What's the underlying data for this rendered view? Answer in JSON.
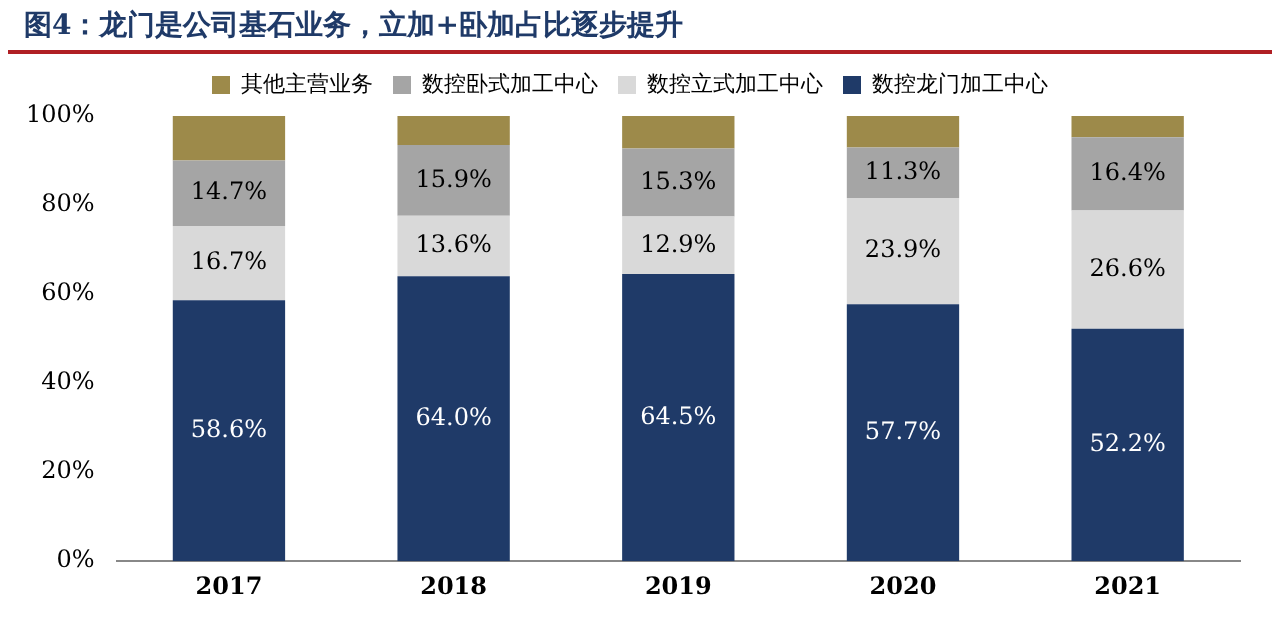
{
  "chart_data": {
    "type": "bar",
    "stacked": true,
    "title": "图4：龙门是公司基石业务，立加+卧加占比逐步提升",
    "categories": [
      "2017",
      "2018",
      "2019",
      "2020",
      "2021"
    ],
    "series": [
      {
        "name": "数控龙门加工中心",
        "color": "#1f3a68",
        "values": [
          58.6,
          64.0,
          64.5,
          57.7,
          52.2
        ],
        "value_labels": [
          "58.6%",
          "64.0%",
          "64.5%",
          "57.7%",
          "52.2%"
        ]
      },
      {
        "name": "数控立式加工中心",
        "color": "#d9d9d9",
        "values": [
          16.7,
          13.6,
          12.9,
          23.9,
          26.6
        ],
        "value_labels": [
          "16.7%",
          "13.6%",
          "12.9%",
          "23.9%",
          "26.6%"
        ]
      },
      {
        "name": "数控卧式加工中心",
        "color": "#a5a5a5",
        "values": [
          14.7,
          15.9,
          15.3,
          11.3,
          16.4
        ],
        "value_labels": [
          "14.7%",
          "15.9%",
          "15.3%",
          "11.3%",
          "16.4%"
        ]
      },
      {
        "name": "其他主营业务",
        "color": "#9d8a4a",
        "values": [
          10.0,
          6.5,
          7.3,
          7.1,
          4.8
        ]
      }
    ],
    "ylim": [
      0,
      100
    ],
    "yticks": [
      {
        "value": 0,
        "label": "0%"
      },
      {
        "value": 20,
        "label": "20%"
      },
      {
        "value": 40,
        "label": "40%"
      },
      {
        "value": 60,
        "label": "60%"
      },
      {
        "value": 80,
        "label": "80%"
      },
      {
        "value": 100,
        "label": "100%"
      }
    ],
    "grid": false,
    "legend": "top"
  }
}
